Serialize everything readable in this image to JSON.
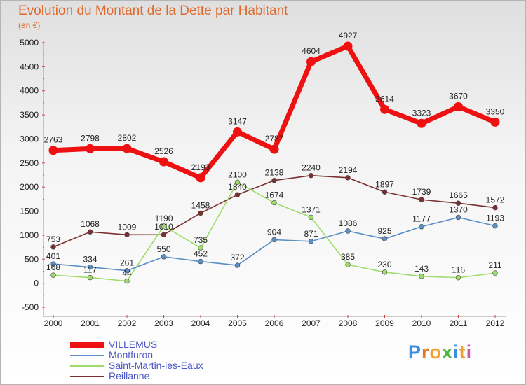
{
  "title": "Evolution du Montant de la Dette par Habitant",
  "subtitle": "(en €)",
  "brand": {
    "letters": [
      "P",
      "r",
      "o",
      "x",
      "i",
      "t",
      "i"
    ],
    "colors": [
      "#3b8fe0",
      "#e07b2a",
      "#f0a030",
      "#52b54a",
      "#3b8fe0",
      "#f0a030",
      "#c85aa8"
    ]
  },
  "chart_data": {
    "type": "line",
    "x": [
      "2000",
      "2001",
      "2002",
      "2003",
      "2004",
      "2005",
      "2006",
      "2007",
      "2008",
      "2009",
      "2010",
      "2011",
      "2012"
    ],
    "ylim": [
      -500,
      5000
    ],
    "yticks": [
      "-500",
      "0",
      "500",
      "1000",
      "1500",
      "2000",
      "2500",
      "3000",
      "3500",
      "4000",
      "4500",
      "5000"
    ],
    "grid": false,
    "legend_position": "bottom-left",
    "series": [
      {
        "name": "VILLEMUS",
        "color": "#ee1111",
        "values": [
          2763,
          2798,
          2802,
          2526,
          2193,
          3147,
          2787,
          4604,
          4927,
          3614,
          3323,
          3670,
          3350
        ],
        "labels": [
          "2763",
          "2798",
          "2802",
          "2526",
          "2193",
          "3147",
          "2787",
          "4604",
          "4927",
          "3614",
          "3323",
          "3670",
          "3350"
        ]
      },
      {
        "name": "Montfuron",
        "color": "#5a8fc8",
        "values": [
          401,
          334,
          261,
          550,
          452,
          372,
          904,
          871,
          1086,
          925,
          1177,
          1370,
          1193
        ],
        "labels": [
          "401",
          "334",
          "261",
          "550",
          "452",
          "372",
          "904",
          "871",
          "1086",
          "925",
          "1177",
          "1370",
          "1193"
        ]
      },
      {
        "name": "Saint-Martin-les-Eaux",
        "color": "#9edd6a",
        "values": [
          168,
          117,
          44,
          1190,
          735,
          2100,
          1674,
          1371,
          385,
          230,
          143,
          116,
          211
        ],
        "labels": [
          "168",
          "117",
          "44",
          "1190",
          "735",
          "2100",
          "1674",
          "1371",
          "385",
          "230",
          "143",
          "116",
          "211"
        ]
      },
      {
        "name": "Reillanne",
        "color": "#7a3030",
        "values": [
          753,
          1068,
          1009,
          1010,
          1458,
          1840,
          2138,
          2240,
          2194,
          1897,
          1739,
          1665,
          1572
        ],
        "labels": [
          "753",
          "1068",
          "1009",
          "1010",
          "1458",
          "1840",
          "2138",
          "2240",
          "2194",
          "1897",
          "1739",
          "1665",
          "1572"
        ]
      }
    ]
  }
}
